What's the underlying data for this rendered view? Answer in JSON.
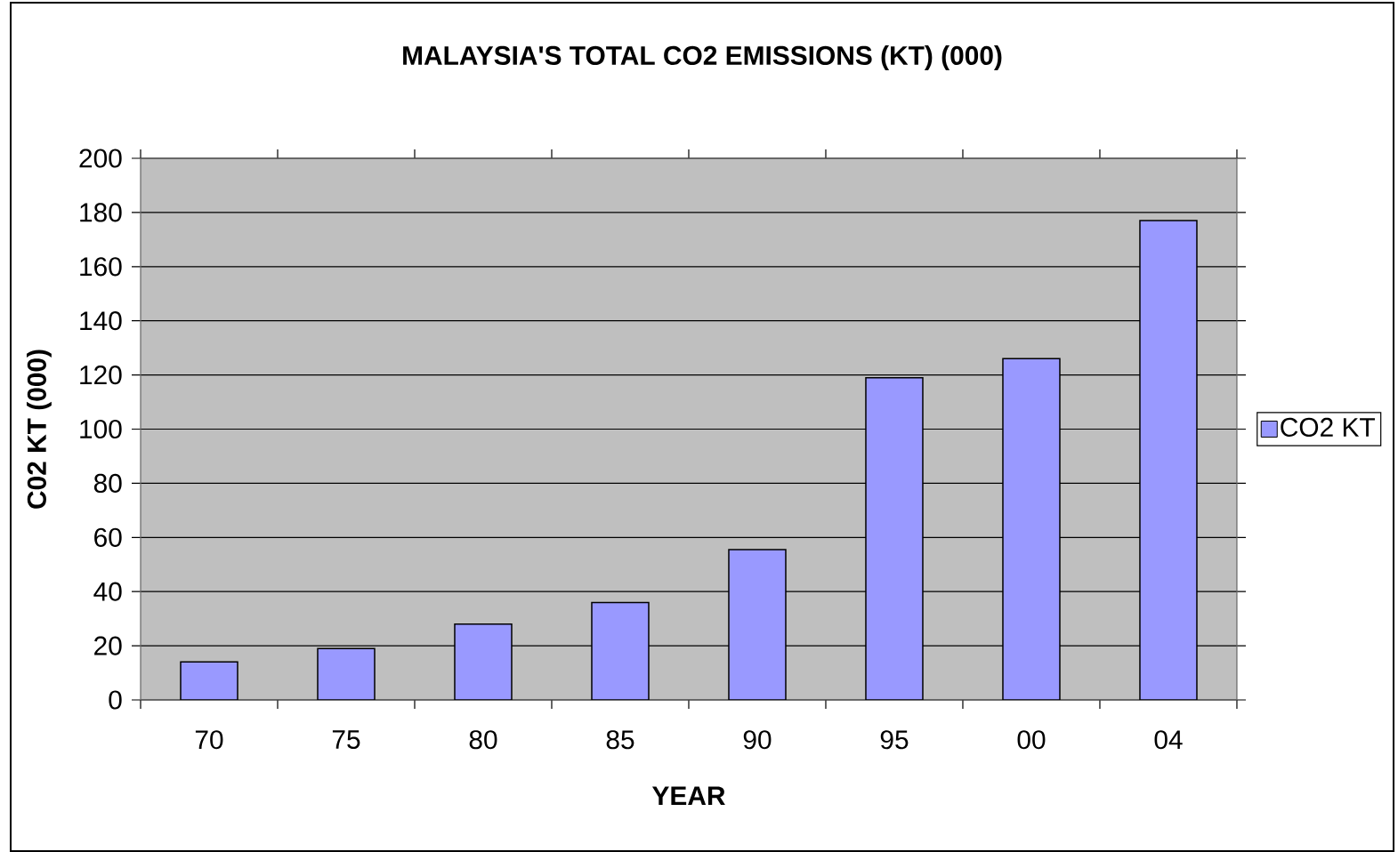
{
  "chart_data": {
    "type": "bar",
    "title": "MALAYSIA'S TOTAL CO2 EMISSIONS (KT) (000)",
    "xlabel": "YEAR",
    "ylabel": "C02 KT (000)",
    "categories": [
      "70",
      "75",
      "80",
      "85",
      "90",
      "95",
      "00",
      "04"
    ],
    "series": [
      {
        "name": "CO2 KT",
        "color": "#9999ff",
        "values": [
          14,
          19,
          28,
          36,
          55.5,
          119,
          126,
          177
        ]
      }
    ],
    "ylim": [
      0,
      200
    ],
    "yticks": [
      0,
      20,
      40,
      60,
      80,
      100,
      120,
      140,
      160,
      180,
      200
    ],
    "grid": "y",
    "legend": "right"
  }
}
